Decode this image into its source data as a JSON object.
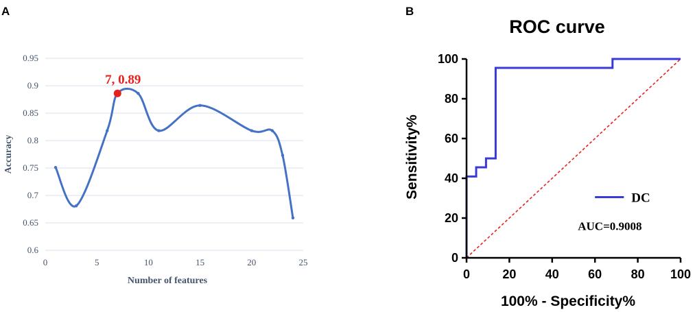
{
  "panels": {
    "a_label": "A",
    "b_label": "B"
  },
  "colors": {
    "accuracy_line": "#4472c4",
    "highlight": "#e8201c",
    "roc_line": "#3a3ad8",
    "diagonal": "#e8201c",
    "gridline": "#d9e1ec"
  },
  "chart_data": [
    {
      "type": "line",
      "title": "",
      "xlabel": "Number of  features",
      "ylabel": "Accuracy",
      "xlim": [
        0,
        25
      ],
      "ylim": [
        0.6,
        0.95
      ],
      "xticks": [
        "0",
        "5",
        "10",
        "15",
        "20",
        "25"
      ],
      "yticks": [
        "0.6",
        "0.65",
        "0.7",
        "0.75",
        "0.8",
        "0.85",
        "0.9",
        "0.95"
      ],
      "grid": true,
      "smooth": true,
      "series": [
        {
          "x": [
            1,
            3,
            6,
            7,
            9,
            11,
            15,
            20,
            22,
            23,
            24
          ],
          "y": [
            0.751,
            0.681,
            0.818,
            0.886,
            0.886,
            0.818,
            0.864,
            0.818,
            0.818,
            0.773,
            0.659
          ]
        }
      ],
      "highlight": {
        "x": 7,
        "y": 0.886,
        "label": "7, 0.89"
      }
    },
    {
      "type": "line",
      "title": "ROC curve",
      "xlabel": "100% - Specificity%",
      "ylabel": "Sensitivity%",
      "xlim": [
        0,
        100
      ],
      "ylim": [
        0,
        100
      ],
      "xticks": [
        "0",
        "20",
        "40",
        "60",
        "80",
        "100"
      ],
      "yticks": [
        "0",
        "20",
        "40",
        "60",
        "80",
        "100"
      ],
      "grid": false,
      "legend_position": "bottom-right",
      "series": [
        {
          "name": "DC",
          "step": true,
          "x": [
            0,
            0,
            4.5,
            4.5,
            9.1,
            9.1,
            13.6,
            13.6,
            68.2,
            68.2,
            100
          ],
          "y": [
            0,
            40.9,
            40.9,
            45.5,
            45.5,
            50,
            50,
            95.5,
            95.5,
            100,
            100
          ]
        }
      ],
      "reference_line": {
        "x": [
          0,
          100
        ],
        "y": [
          0,
          100
        ]
      },
      "annotation": "AUC=0.9008"
    }
  ]
}
